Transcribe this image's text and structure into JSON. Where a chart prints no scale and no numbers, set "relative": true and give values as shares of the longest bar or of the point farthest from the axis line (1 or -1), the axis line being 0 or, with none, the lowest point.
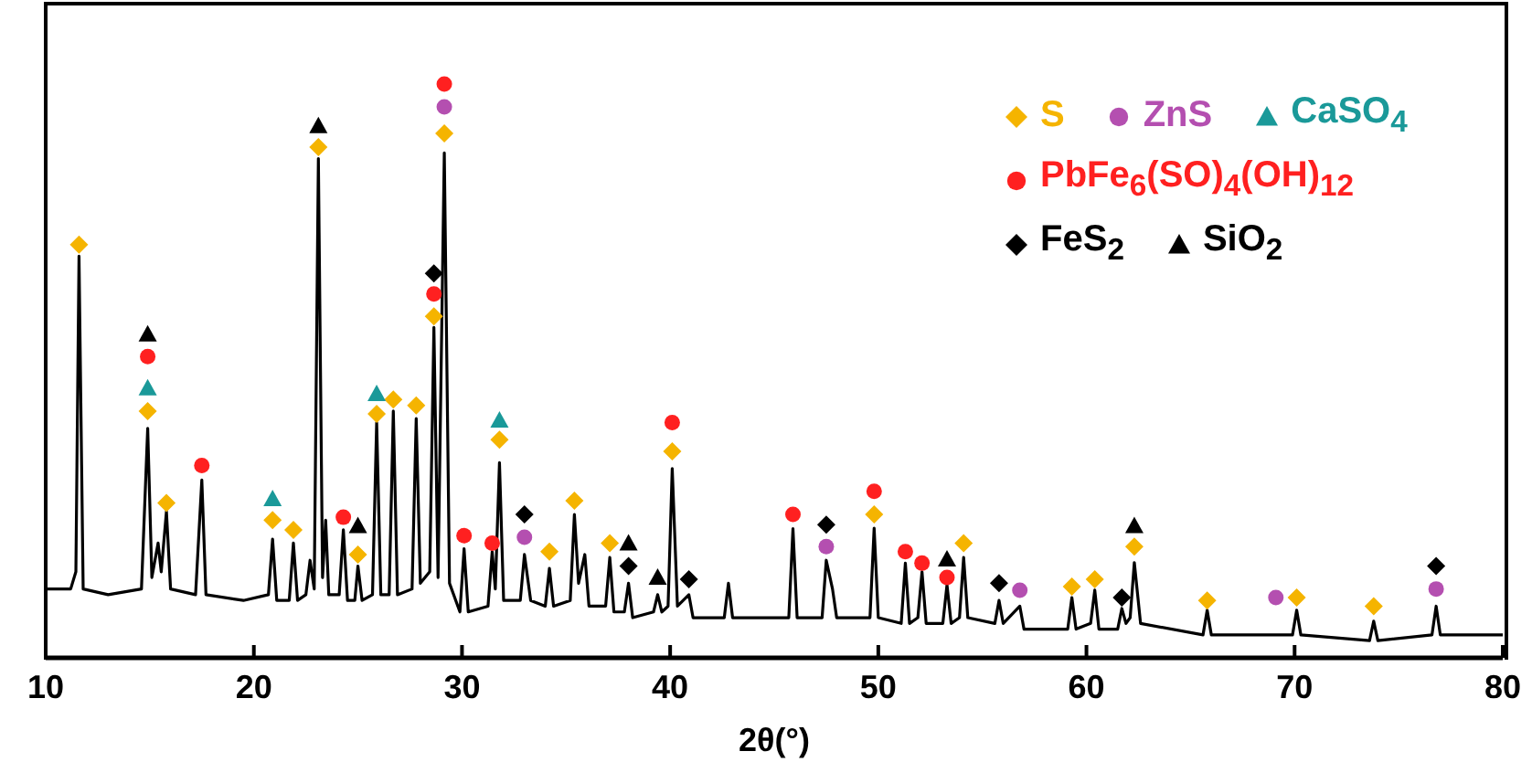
{
  "chart_data": {
    "type": "line",
    "relative": true,
    "xlabel": "2θ(°)",
    "xlim": [
      10,
      80
    ],
    "xticks": [
      10,
      20,
      30,
      40,
      50,
      60,
      70,
      80
    ],
    "grid": false,
    "legend": "top right",
    "series": [
      {
        "color": "#000000",
        "marker": "none",
        "x": [
          10,
          11.2,
          11.45,
          11.6,
          11.8,
          13,
          14.6,
          14.9,
          15.1,
          15.4,
          15.55,
          15.8,
          16.0,
          17.2,
          17.5,
          17.7,
          19.5,
          20.7,
          20.9,
          21.1,
          21.7,
          21.9,
          22.1,
          22.5,
          22.7,
          22.9,
          23.1,
          23.3,
          23.45,
          23.6,
          24.1,
          24.3,
          24.5,
          24.85,
          25.0,
          25.2,
          25.7,
          25.9,
          26.1,
          26.5,
          26.7,
          26.9,
          27.6,
          27.8,
          28.0,
          28.45,
          28.65,
          28.85,
          29.15,
          29.4,
          29.9,
          30.1,
          30.3,
          31.25,
          31.45,
          31.6,
          31.8,
          32.0,
          32.8,
          33.0,
          33.3,
          34.0,
          34.2,
          34.4,
          35.2,
          35.4,
          35.6,
          35.9,
          36.1,
          36.9,
          37.1,
          37.3,
          37.8,
          38.0,
          38.2,
          39.2,
          39.4,
          39.6,
          39.9,
          40.1,
          40.35,
          40.9,
          41.1,
          42.6,
          42.8,
          43.0,
          45.7,
          45.9,
          46.1,
          47.3,
          47.5,
          47.8,
          48.0,
          49.6,
          49.8,
          50.0,
          51.1,
          51.3,
          51.5,
          51.9,
          52.1,
          52.3,
          53.1,
          53.3,
          53.5,
          53.9,
          54.1,
          54.3,
          55.6,
          55.8,
          56.0,
          56.8,
          57.0,
          59.1,
          59.3,
          59.5,
          60.2,
          60.4,
          60.6,
          61.5,
          61.7,
          61.9,
          62.1,
          62.3,
          62.6,
          65.6,
          65.8,
          66.0,
          69.9,
          70.1,
          70.3,
          73.6,
          73.8,
          74.0,
          76.6,
          76.8,
          77.0,
          80
        ],
        "values": [
          0.12,
          0.12,
          0.15,
          0.7,
          0.12,
          0.11,
          0.12,
          0.4,
          0.14,
          0.2,
          0.15,
          0.255,
          0.12,
          0.11,
          0.31,
          0.11,
          0.1,
          0.11,
          0.207,
          0.1,
          0.1,
          0.2,
          0.1,
          0.11,
          0.17,
          0.12,
          0.87,
          0.14,
          0.24,
          0.11,
          0.11,
          0.223,
          0.1,
          0.1,
          0.16,
          0.1,
          0.11,
          0.41,
          0.11,
          0.11,
          0.43,
          0.11,
          0.12,
          0.417,
          0.13,
          0.15,
          0.576,
          0.14,
          0.88,
          0.13,
          0.08,
          0.19,
          0.08,
          0.09,
          0.185,
          0.12,
          0.34,
          0.1,
          0.1,
          0.18,
          0.1,
          0.09,
          0.156,
          0.09,
          0.1,
          0.25,
          0.13,
          0.18,
          0.09,
          0.09,
          0.175,
          0.08,
          0.08,
          0.13,
          0.07,
          0.08,
          0.11,
          0.08,
          0.09,
          0.33,
          0.09,
          0.11,
          0.07,
          0.07,
          0.13,
          0.07,
          0.07,
          0.225,
          0.07,
          0.07,
          0.17,
          0.12,
          0.07,
          0.07,
          0.226,
          0.07,
          0.06,
          0.165,
          0.06,
          0.07,
          0.15,
          0.06,
          0.06,
          0.127,
          0.06,
          0.07,
          0.175,
          0.07,
          0.06,
          0.1,
          0.06,
          0.09,
          0.05,
          0.05,
          0.105,
          0.05,
          0.06,
          0.118,
          0.05,
          0.05,
          0.086,
          0.06,
          0.07,
          0.166,
          0.06,
          0.04,
          0.083,
          0.04,
          0.04,
          0.083,
          0.04,
          0.03,
          0.064,
          0.03,
          0.04,
          0.09,
          0.04,
          0.04
        ]
      },
      {
        "type": "scatter",
        "name": "S",
        "color": "#f5b400",
        "marker": "diamond",
        "x": [
          11.6,
          14.9,
          15.8,
          20.9,
          21.9,
          23.1,
          25.0,
          25.9,
          26.7,
          27.8,
          28.65,
          29.15,
          31.8,
          34.2,
          35.4,
          37.1,
          40.1,
          49.8,
          54.1,
          59.3,
          60.4,
          62.3,
          65.8,
          70.1,
          73.8
        ],
        "values": [
          0.72,
          0.43,
          0.27,
          0.24,
          0.223,
          0.89,
          0.18,
          0.425,
          0.45,
          0.44,
          0.595,
          0.914,
          0.38,
          0.185,
          0.274,
          0.2,
          0.36,
          0.25,
          0.2,
          0.124,
          0.137,
          0.194,
          0.1,
          0.105,
          0.09
        ]
      },
      {
        "type": "scatter",
        "name": "ZnS",
        "color": "#b44fb0",
        "marker": "circle",
        "x": [
          29.15,
          33.0,
          47.5,
          56.8,
          69.1,
          76.8
        ],
        "values": [
          0.96,
          0.21,
          0.194,
          0.118,
          0.105,
          0.12
        ]
      },
      {
        "type": "scatter",
        "name": "CaSO$_{4}$",
        "color": "#1a9999",
        "marker": "triangle",
        "x": [
          14.9,
          20.9,
          25.9,
          31.8
        ],
        "values": [
          0.47,
          0.277,
          0.46,
          0.414
        ]
      },
      {
        "type": "scatter",
        "name": "PbFe$_{6}$(SO)$_{4}$(OH)$_{12}$",
        "color": "#ff2020",
        "marker": "circle",
        "x": [
          14.9,
          17.5,
          24.3,
          28.65,
          29.15,
          30.1,
          31.45,
          40.1,
          45.9,
          49.8,
          51.3,
          52.1,
          53.3
        ],
        "values": [
          0.525,
          0.335,
          0.245,
          0.634,
          1.0,
          0.213,
          0.2,
          0.41,
          0.25,
          0.29,
          0.185,
          0.165,
          0.14
        ]
      },
      {
        "type": "scatter",
        "name": "FeS$_{2}$",
        "color": "#000000",
        "marker": "diamond",
        "x": [
          28.65,
          33.0,
          38.0,
          40.9,
          47.5,
          55.8,
          61.7,
          76.8
        ],
        "values": [
          0.67,
          0.25,
          0.16,
          0.137,
          0.232,
          0.13,
          0.105,
          0.16
        ]
      },
      {
        "type": "scatter",
        "name": "SiO$_{2}$",
        "color": "#000000",
        "marker": "triangle",
        "x": [
          14.9,
          23.1,
          25.0,
          38.0,
          39.4,
          53.3,
          62.3
        ],
        "values": [
          0.564,
          0.927,
          0.23,
          0.2,
          0.14,
          0.172,
          0.23
        ]
      }
    ]
  }
}
